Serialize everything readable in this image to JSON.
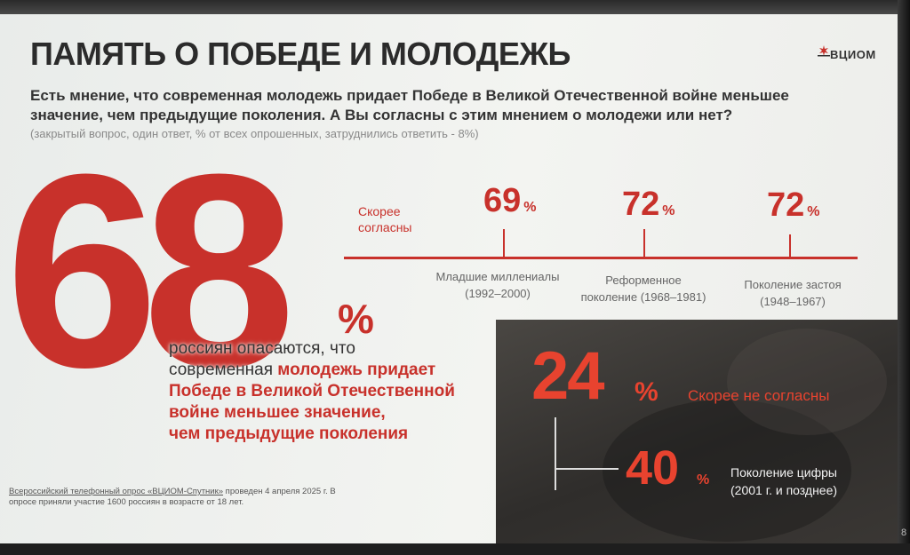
{
  "slide": {
    "title": "ПАМЯТЬ О ПОБЕДЕ И МОЛОДЕЖЬ",
    "logo_text": "ВЦИОМ",
    "question": "Есть мнение, что современная молодежь придает Победе в Великой Отечественной войне меньшее значение, чем предыдущие поколения. А Вы согласны с этим мнением о молодежи или нет?",
    "note": "(закрытый вопрос, один ответ, % от всех опрошенных, затруднились ответить - 8%)",
    "main_value": "68",
    "main_pct": "%",
    "main_desc": {
      "line1": "россиян опасаются, что",
      "line2_plain": "современная ",
      "line2_hl": "молодежь придает",
      "line3": "Победе в Великой Отечественной",
      "line4": "войне меньшее значение,",
      "line5": "чем предыдущие поколения"
    },
    "agree_label": [
      "Скорее",
      "согласны"
    ],
    "generations": [
      {
        "value": "69",
        "pct": "%",
        "label1": "Младшие миллениалы",
        "label2": "(1992–2000)"
      },
      {
        "value": "72",
        "pct": "%",
        "label1": "Реформенное",
        "label2": "поколение (1968–1981)"
      },
      {
        "value": "72",
        "pct": "%",
        "label1": "Поколение застоя",
        "label2": "(1948–1967)"
      }
    ],
    "disagree": {
      "value": "24",
      "pct": "%",
      "label": "Скорее не согласны"
    },
    "digital": {
      "value": "40",
      "pct": "%",
      "label1": "Поколение цифры",
      "label2": "(2001 г. и позднее)"
    },
    "footnote": {
      "link": "Всероссийский телефонный опрос «ВЦИОМ-Спутник»",
      "rest": " проведен 4 апреля 2025 г. В опросе приняли участие 1600 россиян в возрасте от 18 лет."
    },
    "page_number": "8"
  },
  "colors": {
    "accent_red": "#c8312b",
    "panel_red": "#e8432f",
    "text_dark": "#333333"
  }
}
